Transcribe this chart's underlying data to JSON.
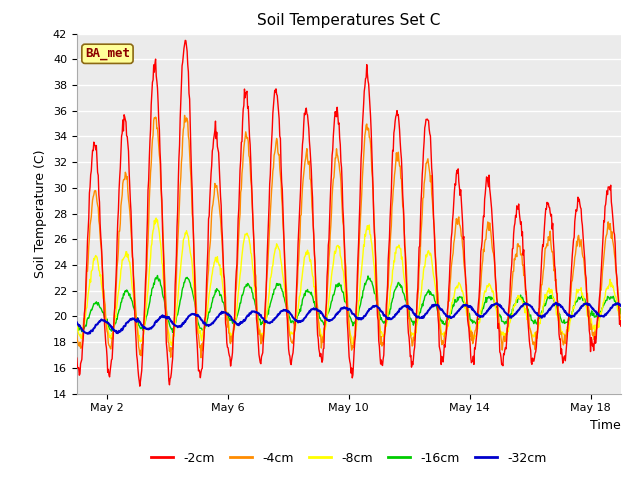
{
  "title": "Soil Temperatures Set C",
  "xlabel": "Time",
  "ylabel": "Soil Temperature (C)",
  "ylim": [
    14,
    42
  ],
  "yticks": [
    14,
    16,
    18,
    20,
    22,
    24,
    26,
    28,
    30,
    32,
    34,
    36,
    38,
    40,
    42
  ],
  "xtick_labels": [
    "May 2",
    "May 6",
    "May 10",
    "May 14",
    "May 18"
  ],
  "xtick_positions": [
    1,
    5,
    9,
    13,
    17
  ],
  "annotation_text": "BA_met",
  "annotation_bg": "#FFFF99",
  "annotation_border": "#8B6914",
  "annotation_text_color": "#8B0000",
  "line_colors": [
    "#FF0000",
    "#FF8C00",
    "#FFFF00",
    "#00CC00",
    "#0000CC"
  ],
  "legend_labels": [
    "-2cm",
    "-4cm",
    "-8cm",
    "-16cm",
    "-32cm"
  ],
  "plot_bg": "#EBEBEB",
  "fig_bg": "#FFFFFF",
  "grid_color": "#FFFFFF",
  "days": 18,
  "ppd": 48,
  "peak_2cm": [
    33.5,
    35.5,
    39.5,
    41.5,
    34.5,
    37.5,
    37.5,
    36.0,
    36.0,
    39.0,
    36.0,
    35.5,
    31.0,
    30.5,
    28.5,
    29.0,
    29.0,
    30.0
  ],
  "trough_2cm": [
    15.5,
    15.5,
    15.0,
    15.0,
    15.5,
    16.5,
    16.5,
    16.5,
    16.5,
    15.5,
    16.5,
    16.5,
    16.5,
    16.5,
    16.5,
    16.5,
    16.5,
    17.5
  ],
  "peak_4cm": [
    29.5,
    31.0,
    35.5,
    35.5,
    30.0,
    34.0,
    33.5,
    32.5,
    32.5,
    35.0,
    32.5,
    32.0,
    27.5,
    27.0,
    25.5,
    26.0,
    26.0,
    27.0
  ],
  "trough_4cm": [
    17.5,
    17.5,
    17.0,
    17.0,
    17.5,
    18.0,
    18.0,
    18.0,
    18.0,
    17.5,
    18.0,
    18.0,
    18.0,
    18.0,
    18.0,
    18.0,
    18.0,
    18.5
  ],
  "peak_8cm": [
    24.5,
    25.0,
    27.5,
    26.5,
    24.5,
    26.5,
    25.5,
    25.0,
    25.5,
    27.0,
    25.5,
    25.0,
    22.5,
    22.5,
    21.5,
    22.0,
    22.0,
    22.5
  ],
  "trough_8cm": [
    18.5,
    18.5,
    18.0,
    18.0,
    18.5,
    18.5,
    18.5,
    18.5,
    18.5,
    18.0,
    18.5,
    18.5,
    18.5,
    18.5,
    18.5,
    18.5,
    18.5,
    19.0
  ],
  "peak_16cm": [
    21.0,
    22.0,
    23.0,
    23.0,
    22.0,
    22.5,
    22.5,
    22.0,
    22.5,
    23.0,
    22.5,
    22.0,
    21.5,
    21.5,
    21.5,
    21.5,
    21.5,
    21.5
  ],
  "trough_16cm": [
    19.0,
    19.0,
    19.0,
    19.0,
    19.0,
    19.5,
    19.5,
    19.5,
    19.5,
    19.5,
    19.5,
    19.5,
    19.5,
    19.5,
    19.5,
    19.5,
    19.5,
    20.0
  ],
  "base_32cm": [
    19.2,
    19.3,
    19.5,
    19.7,
    19.8,
    19.9,
    20.0,
    20.1,
    20.2,
    20.3,
    20.3,
    20.4,
    20.4,
    20.5,
    20.5,
    20.5,
    20.5,
    20.5
  ]
}
